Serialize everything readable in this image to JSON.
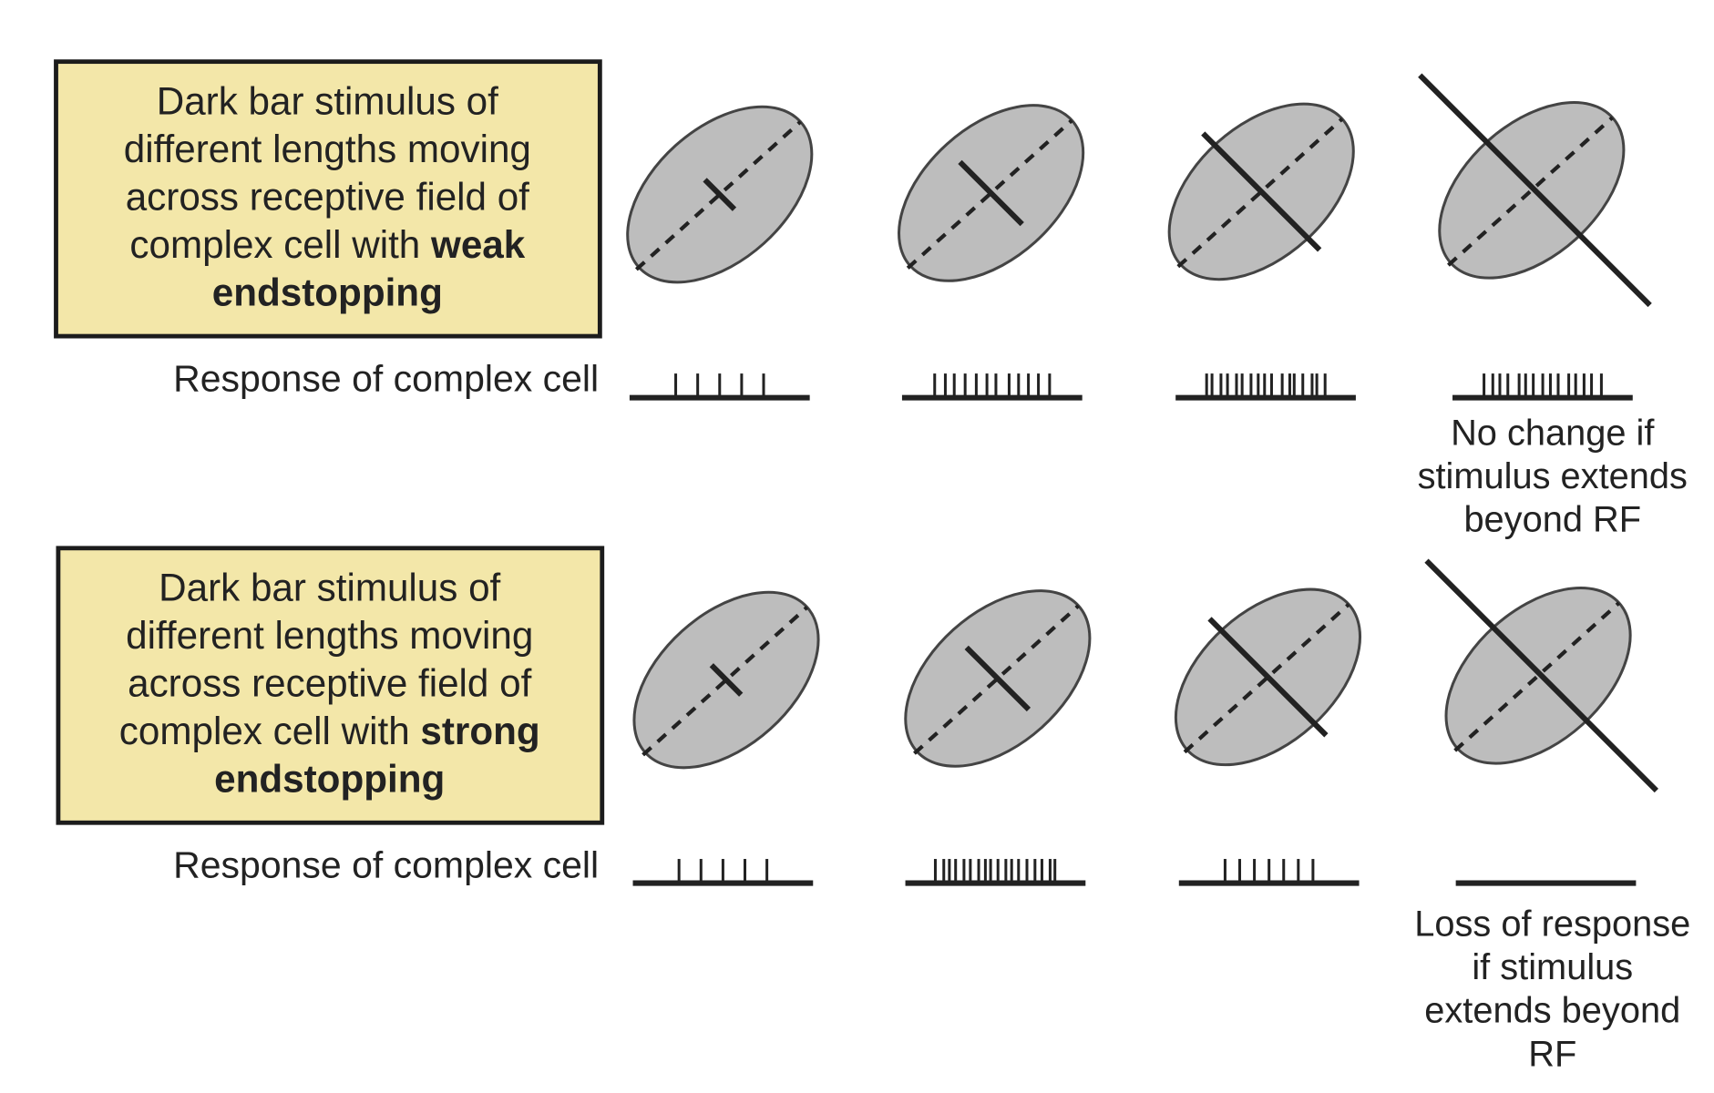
{
  "colors": {
    "box_fill": "#f3e7a9",
    "box_stroke": "#1c1c1c",
    "rf_fill": "#bdbdbd",
    "rf_stroke": "#444444",
    "ink": "#222222"
  },
  "rows": [
    {
      "box_lines": [
        [
          {
            "t": "Dark bar stimulus of",
            "b": false
          }
        ],
        [
          {
            "t": "different lengths moving",
            "b": false
          }
        ],
        [
          {
            "t": "across receptive field of",
            "b": false
          }
        ],
        [
          {
            "t": "complex cell with ",
            "b": false
          },
          {
            "t": "weak",
            "b": true
          }
        ],
        [
          {
            "t": "endstopping",
            "b": true
          }
        ]
      ],
      "response_label": "Response of complex cell",
      "spike_counts": [
        5,
        12,
        17,
        15
      ],
      "note_lines": [
        "No change if",
        "stimulus extends",
        "beyond RF"
      ]
    },
    {
      "box_lines": [
        [
          {
            "t": "Dark bar stimulus of",
            "b": false
          }
        ],
        [
          {
            "t": "different lengths moving",
            "b": false
          }
        ],
        [
          {
            "t": "across receptive field of",
            "b": false
          }
        ],
        [
          {
            "t": "complex cell with ",
            "b": false
          },
          {
            "t": "strong",
            "b": true
          }
        ],
        [
          {
            "t": "endstopping",
            "b": true
          }
        ]
      ],
      "response_label": "Response of complex cell",
      "spike_counts": [
        5,
        18,
        7,
        0
      ],
      "note_lines": [
        "Loss of response",
        "if stimulus",
        "extends beyond",
        "RF"
      ]
    }
  ],
  "stimulus_lengths": [
    "short",
    "medium",
    "long",
    "beyond receptive field"
  ]
}
